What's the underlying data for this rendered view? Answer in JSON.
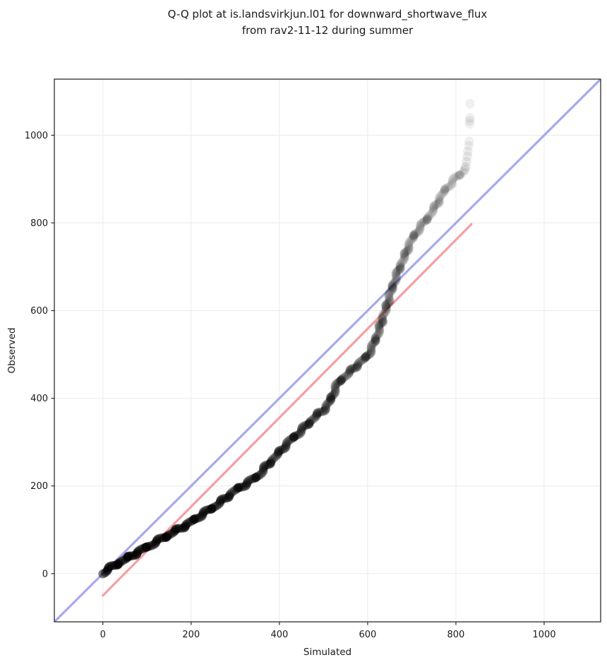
{
  "title": {
    "line1": "Q-Q plot at is.landsvirkjun.l01 for downward_shortwave_flux",
    "line2": "from rav2-11-12 during summer"
  },
  "chart_data": {
    "type": "scatter",
    "subtype": "qq-plot",
    "title": "Q-Q plot at is.landsvirkjun.l01 for downward_shortwave_flux from rav2-11-12 during summer",
    "xlabel": "Simulated",
    "ylabel": "Observed",
    "xlim": [
      -110,
      1128
    ],
    "ylim": [
      -110,
      1128
    ],
    "x_ticks": [
      0,
      200,
      400,
      600,
      800,
      1000
    ],
    "y_ticks": [
      0,
      200,
      400,
      600,
      800,
      1000
    ],
    "grid": true,
    "grid_color": "#ececec",
    "background_color": "#ffffff",
    "spine_color": "#2b2b2b",
    "identity_line": {
      "label": "identity (y = x)",
      "color": "#a8a8ee",
      "width": 3.2,
      "from": [
        -110,
        -110
      ],
      "to": [
        1128,
        1128
      ]
    },
    "fit_line": {
      "label": "regression fit",
      "color": "#f59ea3",
      "width": 3.2,
      "from": [
        0,
        -50
      ],
      "to": [
        835,
        797
      ]
    },
    "points_color": "#000000",
    "marker_radius_px": 6.4,
    "qq_points": [
      [
        0,
        2,
        0.5
      ],
      [
        10,
        8,
        0.5
      ],
      [
        20,
        15,
        0.5
      ],
      [
        30,
        21,
        0.5
      ],
      [
        42,
        28,
        0.48
      ],
      [
        55,
        35,
        0.48
      ],
      [
        70,
        44,
        0.46
      ],
      [
        85,
        52,
        0.46
      ],
      [
        100,
        61,
        0.45
      ],
      [
        120,
        72,
        0.45
      ],
      [
        140,
        83,
        0.44
      ],
      [
        160,
        95,
        0.44
      ],
      [
        180,
        106,
        0.43
      ],
      [
        200,
        118,
        0.42
      ],
      [
        220,
        132,
        0.4
      ],
      [
        240,
        145,
        0.4
      ],
      [
        260,
        158,
        0.38
      ],
      [
        280,
        174,
        0.38
      ],
      [
        300,
        190,
        0.36
      ],
      [
        320,
        202,
        0.36
      ],
      [
        340,
        215,
        0.35
      ],
      [
        355,
        226,
        0.34
      ],
      [
        370,
        245,
        0.33
      ],
      [
        385,
        260,
        0.32
      ],
      [
        400,
        277,
        0.32
      ],
      [
        415,
        294,
        0.31
      ],
      [
        430,
        309,
        0.3
      ],
      [
        445,
        322,
        0.3
      ],
      [
        460,
        337,
        0.29
      ],
      [
        475,
        352,
        0.28
      ],
      [
        490,
        366,
        0.27
      ],
      [
        505,
        378,
        0.26
      ],
      [
        515,
        395,
        0.26
      ],
      [
        525,
        418,
        0.25
      ],
      [
        535,
        438,
        0.24
      ],
      [
        548,
        450,
        0.24
      ],
      [
        560,
        460,
        0.23
      ],
      [
        572,
        472,
        0.22
      ],
      [
        585,
        484,
        0.22
      ],
      [
        598,
        494,
        0.21
      ],
      [
        610,
        515,
        0.2
      ],
      [
        622,
        545,
        0.19
      ],
      [
        633,
        578,
        0.18
      ],
      [
        643,
        610,
        0.17
      ],
      [
        652,
        640,
        0.16
      ],
      [
        660,
        665,
        0.16
      ],
      [
        670,
        692,
        0.15
      ],
      [
        680,
        715,
        0.14
      ],
      [
        692,
        745,
        0.13
      ],
      [
        703,
        768,
        0.13
      ],
      [
        715,
        785,
        0.12
      ],
      [
        727,
        800,
        0.12
      ],
      [
        740,
        817,
        0.11
      ],
      [
        752,
        835,
        0.1
      ],
      [
        763,
        855,
        0.1
      ],
      [
        773,
        872,
        0.09
      ],
      [
        783,
        884,
        0.09
      ],
      [
        793,
        896,
        0.08
      ],
      [
        802,
        905,
        0.08
      ],
      [
        810,
        911,
        0.08
      ],
      [
        817,
        916,
        0.08
      ]
    ],
    "outlier_points": [
      [
        820,
        921,
        0.1
      ],
      [
        822,
        928,
        0.09
      ],
      [
        824,
        940,
        0.08
      ],
      [
        826,
        952,
        0.07
      ],
      [
        827,
        963,
        0.07
      ],
      [
        829,
        976,
        0.06
      ],
      [
        830,
        986,
        0.06
      ],
      [
        831,
        1026,
        0.06
      ],
      [
        831,
        1033,
        0.06
      ],
      [
        832,
        1040,
        0.06
      ],
      [
        832,
        1072,
        0.06
      ]
    ],
    "legend": "none"
  },
  "layout_text": {
    "x_tick_labels": [
      "0",
      "200",
      "400",
      "600",
      "800",
      "1000"
    ],
    "y_tick_labels": [
      "0",
      "200",
      "400",
      "600",
      "800",
      "1000"
    ]
  }
}
